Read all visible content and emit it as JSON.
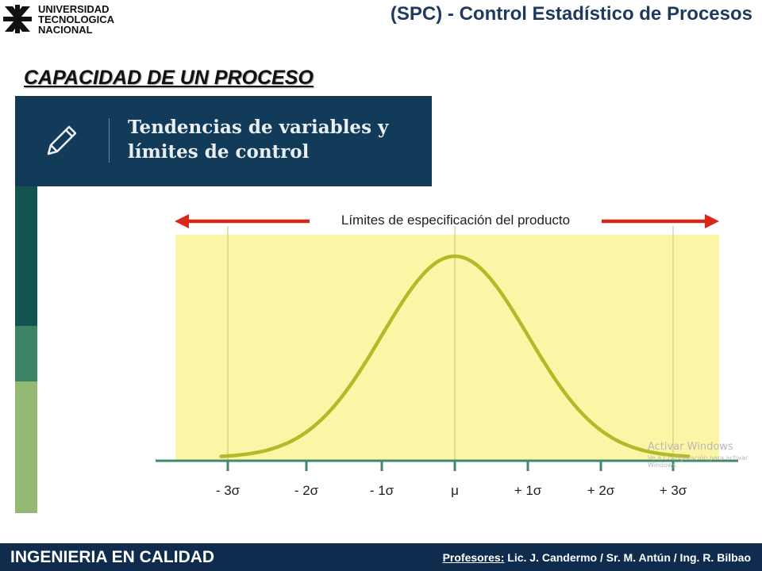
{
  "header": {
    "logo_lines": [
      "UNIVERSIDAD",
      "TECNOLOGICA",
      "NACIONAL"
    ],
    "title_prefix": "(SPC) -",
    "title_main": "Control Estadístico de Procesos"
  },
  "section_title": "CAPACIDAD DE UN PROCESO",
  "banner": {
    "icon": "pencil-icon",
    "title_line1": "Tendencias de variables y",
    "title_line2": "límites de control"
  },
  "diagram": {
    "spec_limits_label": "Límites de especificación del producto",
    "axis_labels": [
      "- 3σ",
      "- 2σ",
      "- 1σ",
      "μ",
      "+ 1σ",
      "+ 2σ",
      "+ 3σ"
    ],
    "colors": {
      "band": "#fcf5a6",
      "curve": "#b2ba2a",
      "arrow": "#d8281c",
      "axis": "#3f8a6a"
    }
  },
  "watermark": {
    "line1": "Activar Windows",
    "line2": "Ve a Configuración para activar Windows."
  },
  "footer": {
    "left": "INGENIERIA EN CALIDAD",
    "right_label": "Profesores:",
    "right_names": "Lic. J. Candermo / Sr. M. Antún / Ing. R. Bilbao"
  },
  "stripe_colors": [
    "#12544f",
    "#3b8564",
    "#93b972"
  ]
}
